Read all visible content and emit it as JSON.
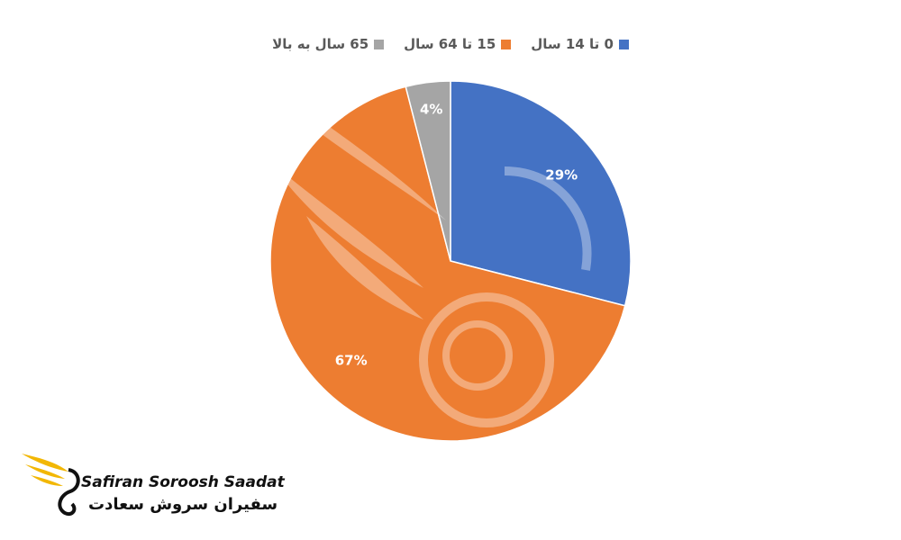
{
  "chart_data": {
    "type": "pie",
    "categories": [
      "0 تا 14 سال",
      "15 تا 64 سال",
      "65 سال به بالا"
    ],
    "values": [
      29,
      67,
      4
    ],
    "data_labels": [
      "29%",
      "67%",
      "4%"
    ],
    "colors": [
      "#4472c4",
      "#ed7d31",
      "#a5a5a5"
    ],
    "title": "",
    "legend_position": "top"
  },
  "brand": {
    "name_en": "Safiran Soroosh Saadat",
    "name_fa": "سفیران سروش سعادت",
    "logo_icon": "winged-swan-logo-icon",
    "accent_color": "#f2b705"
  }
}
